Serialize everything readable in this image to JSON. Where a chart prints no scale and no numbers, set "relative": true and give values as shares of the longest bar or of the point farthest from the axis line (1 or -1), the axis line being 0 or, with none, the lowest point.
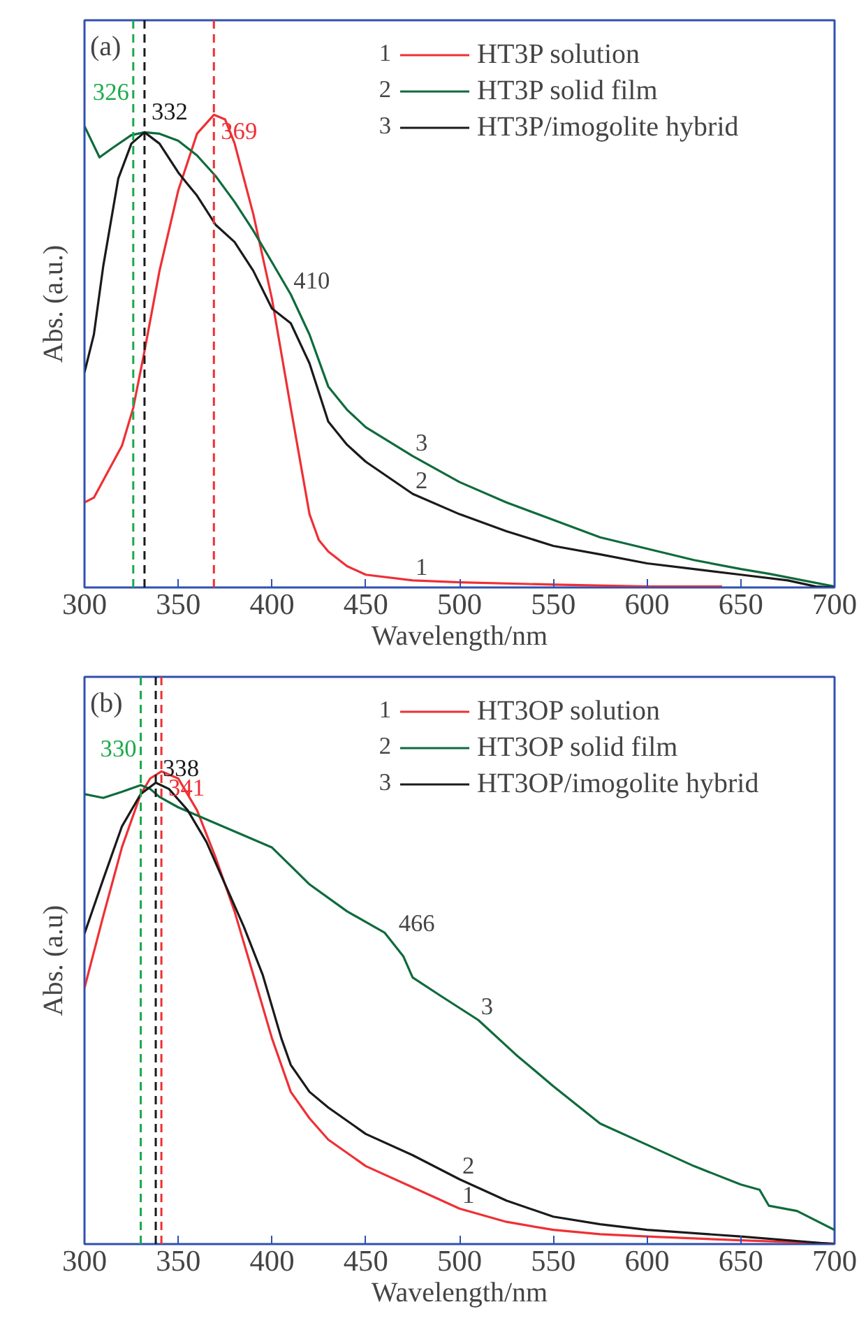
{
  "chart_data": [
    {
      "type": "line",
      "title": "(a)",
      "xlabel": "Wavelength/nm",
      "ylabel": "Abs. (a.u.)",
      "relative": true,
      "xlim": [
        300,
        700
      ],
      "xticks": [
        300,
        350,
        400,
        450,
        500,
        550,
        600,
        650,
        700
      ],
      "grid": false,
      "legend": "top right",
      "line_style": "solid",
      "series": [
        {
          "name": "HT3P solution",
          "color": "#ee3035",
          "x": [
            300,
            305,
            320,
            326,
            332,
            340,
            350,
            360,
            369,
            375,
            380,
            390,
            400,
            410,
            420,
            425,
            430,
            440,
            450,
            475,
            500,
            550,
            600,
            640
          ],
          "values": [
            0.18,
            0.19,
            0.3,
            0.38,
            0.5,
            0.67,
            0.84,
            0.96,
            1.0,
            0.99,
            0.94,
            0.79,
            0.61,
            0.38,
            0.155,
            0.1,
            0.076,
            0.045,
            0.027,
            0.015,
            0.011,
            0.006,
            0.002,
            0.002
          ]
        },
        {
          "name": "HT3P solid film",
          "color": "#0f6b3c",
          "x": [
            300,
            308,
            315,
            325,
            332,
            340,
            350,
            360,
            370,
            380,
            390,
            400,
            410,
            420,
            430,
            440,
            450,
            475,
            500,
            525,
            550,
            575,
            600,
            625,
            650,
            665,
            700
          ],
          "values": [
            0.976,
            0.91,
            0.93,
            0.957,
            0.963,
            0.96,
            0.945,
            0.914,
            0.87,
            0.816,
            0.755,
            0.688,
            0.62,
            0.535,
            0.425,
            0.376,
            0.339,
            0.278,
            0.223,
            0.18,
            0.143,
            0.106,
            0.082,
            0.058,
            0.039,
            0.029,
            0.002
          ]
        },
        {
          "name": "HT3P/imogolite hybrid",
          "color": "#1a1a1a",
          "x": [
            300,
            305,
            310,
            318,
            325,
            332,
            340,
            350,
            355,
            360,
            370,
            380,
            390,
            400,
            410,
            420,
            430,
            440,
            450,
            475,
            500,
            525,
            550,
            575,
            600,
            625,
            650,
            675,
            690,
            700
          ],
          "values": [
            0.455,
            0.535,
            0.68,
            0.865,
            0.939,
            0.963,
            0.939,
            0.878,
            0.853,
            0.829,
            0.767,
            0.731,
            0.67,
            0.59,
            0.559,
            0.474,
            0.351,
            0.302,
            0.266,
            0.198,
            0.155,
            0.119,
            0.088,
            0.07,
            0.051,
            0.039,
            0.027,
            0.015,
            0.002,
            0.0
          ]
        }
      ],
      "ref_lines": [
        {
          "axis": "x",
          "value": 326,
          "label": "326",
          "color": "#1aaa4a",
          "line_style": "dashed"
        },
        {
          "axis": "x",
          "value": 332,
          "label": "332",
          "color": "#1a1a1a",
          "line_style": "dashed"
        },
        {
          "axis": "x",
          "value": 369,
          "label": "369",
          "color": "#ee3035",
          "line_style": "dashed"
        }
      ],
      "annotations": [
        "1",
        "2",
        "3",
        {
          "text": "410",
          "x": 410,
          "y": 0.62
        },
        {
          "text": "3",
          "x": 475,
          "y": 0.278
        },
        {
          "text": "2",
          "x": 475,
          "y": 0.198
        },
        {
          "text": "1",
          "x": 475,
          "y": 0.015
        }
      ]
    },
    {
      "type": "line",
      "title": "(b)",
      "xlabel": "Wavelength/nm",
      "ylabel": "Abs. (a.u)",
      "relative": true,
      "xlim": [
        300,
        700
      ],
      "xticks": [
        300,
        350,
        400,
        450,
        500,
        550,
        600,
        650,
        700
      ],
      "grid": false,
      "legend": "top right",
      "line_style": "solid",
      "series": [
        {
          "name": "HT3OP solution",
          "color": "#ee3035",
          "x": [
            300,
            310,
            320,
            330,
            335,
            341,
            350,
            360,
            370,
            380,
            390,
            400,
            410,
            420,
            430,
            450,
            475,
            500,
            525,
            550,
            575,
            600,
            650,
            700
          ],
          "values": [
            0.542,
            0.694,
            0.84,
            0.952,
            0.985,
            1.0,
            0.985,
            0.918,
            0.817,
            0.704,
            0.57,
            0.435,
            0.322,
            0.266,
            0.221,
            0.165,
            0.12,
            0.075,
            0.047,
            0.03,
            0.021,
            0.016,
            0.008,
            0.001
          ]
        },
        {
          "name": "HT3OP solid film",
          "color": "#0f6b3c",
          "x": [
            300,
            310,
            320,
            330,
            335,
            340,
            350,
            370,
            390,
            400,
            410,
            420,
            440,
            460,
            470,
            475,
            490,
            510,
            530,
            550,
            575,
            600,
            625,
            650,
            660,
            665,
            680,
            700
          ],
          "values": [
            0.952,
            0.944,
            0.957,
            0.971,
            0.963,
            0.946,
            0.924,
            0.89,
            0.856,
            0.839,
            0.8,
            0.761,
            0.704,
            0.659,
            0.609,
            0.564,
            0.525,
            0.474,
            0.401,
            0.334,
            0.255,
            0.21,
            0.165,
            0.126,
            0.115,
            0.081,
            0.07,
            0.03
          ]
        },
        {
          "name": "HT3OP/imogolite hybrid",
          "color": "#1a1a1a",
          "x": [
            300,
            310,
            320,
            330,
            338,
            345,
            355,
            365,
            375,
            385,
            395,
            405,
            410,
            420,
            430,
            450,
            475,
            500,
            525,
            550,
            575,
            600,
            650,
            700
          ],
          "values": [
            0.657,
            0.772,
            0.884,
            0.952,
            0.976,
            0.963,
            0.918,
            0.851,
            0.761,
            0.671,
            0.57,
            0.435,
            0.379,
            0.322,
            0.289,
            0.233,
            0.188,
            0.137,
            0.092,
            0.058,
            0.042,
            0.03,
            0.016,
            0.0
          ]
        }
      ],
      "ref_lines": [
        {
          "axis": "x",
          "value": 330,
          "label": "330",
          "color": "#1aaa4a",
          "line_style": "dashed"
        },
        {
          "axis": "x",
          "value": 338,
          "label": "338",
          "color": "#1a1a1a",
          "line_style": "dashed"
        },
        {
          "axis": "x",
          "value": 341,
          "label": "341",
          "color": "#ee3035",
          "line_style": "dashed"
        }
      ],
      "annotations": [
        "1",
        "2",
        "3",
        {
          "text": "466",
          "x": 466,
          "y": 0.65
        },
        {
          "text": "3",
          "x": 510,
          "y": 0.474
        },
        {
          "text": "2",
          "x": 500,
          "y": 0.137
        },
        {
          "text": "1",
          "x": 500,
          "y": 0.075
        }
      ]
    }
  ]
}
